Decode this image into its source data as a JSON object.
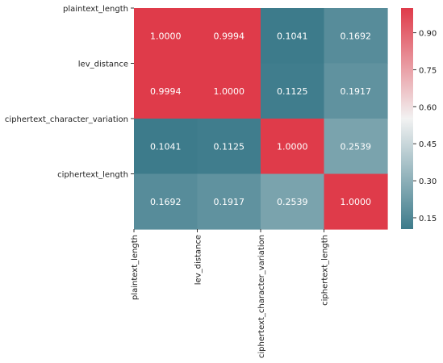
{
  "chart_data": {
    "type": "heatmap",
    "title": "",
    "xlabel": "",
    "ylabel": "",
    "x_labels": [
      "plaintext_length",
      "lev_distance",
      "ciphertext_character_variation",
      "ciphertext_length"
    ],
    "y_labels": [
      "plaintext_length",
      "lev_distance",
      "ciphertext_character_variation",
      "ciphertext_length"
    ],
    "values": [
      [
        1.0,
        0.9994,
        0.1041,
        0.1692
      ],
      [
        0.9994,
        1.0,
        0.1125,
        0.1917
      ],
      [
        0.1041,
        0.1125,
        1.0,
        0.2539
      ],
      [
        0.1692,
        0.1917,
        0.2539,
        1.0
      ]
    ],
    "value_labels": [
      [
        "1.0000",
        "0.9994",
        "0.1041",
        "0.1692"
      ],
      [
        "0.9994",
        "1.0000",
        "0.1125",
        "0.1917"
      ],
      [
        "0.1041",
        "0.1125",
        "1.0000",
        "0.2539"
      ],
      [
        "0.1692",
        "0.1917",
        "0.2539",
        "1.0000"
      ]
    ],
    "colorbar": {
      "range": [
        0.1041,
        1.0
      ],
      "ticks": [
        0.15,
        0.3,
        0.45,
        0.6,
        0.75,
        0.9
      ],
      "tick_labels": [
        "0.15",
        "0.30",
        "0.45",
        "0.60",
        "0.75",
        "0.90"
      ]
    },
    "colormap": {
      "low": "#3d7b8b",
      "mid": "#f2f2f2",
      "high": "#df3b4a"
    },
    "annotation_color": "#ffffff"
  }
}
